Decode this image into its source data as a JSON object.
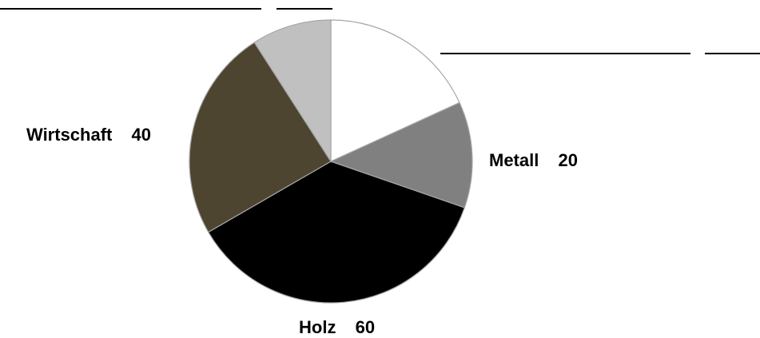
{
  "chart_data": {
    "type": "pie",
    "title": "",
    "slices": [
      {
        "label": "",
        "value": 30,
        "color": "#ffffff"
      },
      {
        "label": "Metall",
        "value": 20,
        "color": "#808080"
      },
      {
        "label": "Holz",
        "value": 60,
        "color": "#000000"
      },
      {
        "label": "Wirtschaft",
        "value": 40,
        "color": "#4d4530"
      },
      {
        "label": "",
        "value": 15,
        "color": "#c0c0c0"
      }
    ],
    "data_labels": [
      {
        "category": "Metall",
        "value": "20"
      },
      {
        "category": "Holz",
        "value": "60"
      },
      {
        "category": "Wirtschaft",
        "value": "40"
      }
    ],
    "start_angle": "12 o'clock",
    "direction": "clockwise",
    "legend": "none",
    "leader_lines": "top-left and top-right, unlabeled"
  }
}
